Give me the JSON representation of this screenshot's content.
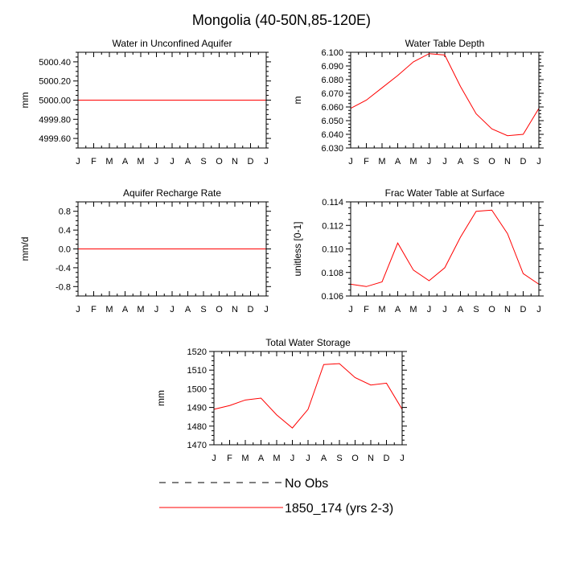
{
  "title": "Mongolia (40-50N,85-120E)",
  "months": [
    "J",
    "F",
    "M",
    "A",
    "M",
    "J",
    "J",
    "A",
    "S",
    "O",
    "N",
    "D",
    "J"
  ],
  "legend": {
    "obs_label": "No Obs",
    "model_label": "1850_174 (yrs 2-3)",
    "model_color": "#ff0000",
    "obs_color": "#000000"
  },
  "chart_data": [
    {
      "type": "line",
      "title": "Water in Unconfined Aquifer",
      "ylabel": "mm",
      "ylim": [
        4999.5,
        5000.5
      ],
      "yticks": [
        4999.6,
        4999.8,
        5000.0,
        5000.2,
        5000.4
      ],
      "ytick_labels": [
        "4999.60",
        "4999.80",
        "5000.00",
        "5000.20",
        "5000.40"
      ],
      "x": [
        0,
        1,
        2,
        3,
        4,
        5,
        6,
        7,
        8,
        9,
        10,
        11,
        12
      ],
      "series": [
        {
          "values": [
            5000,
            5000,
            5000,
            5000,
            5000,
            5000,
            5000,
            5000,
            5000,
            5000,
            5000,
            5000,
            5000
          ]
        }
      ]
    },
    {
      "type": "line",
      "title": "Water Table Depth",
      "ylabel": "m",
      "ylim": [
        6.03,
        6.1
      ],
      "yticks": [
        6.03,
        6.04,
        6.05,
        6.06,
        6.07,
        6.08,
        6.09,
        6.1
      ],
      "ytick_labels": [
        "6.030",
        "6.040",
        "6.050",
        "6.060",
        "6.070",
        "6.080",
        "6.090",
        "6.100"
      ],
      "x": [
        0,
        1,
        2,
        3,
        4,
        5,
        6,
        7,
        8,
        9,
        10,
        11,
        12
      ],
      "series": [
        {
          "values": [
            6.059,
            6.065,
            6.074,
            6.083,
            6.093,
            6.099,
            6.098,
            6.075,
            6.055,
            6.044,
            6.039,
            6.04,
            6.059
          ]
        }
      ]
    },
    {
      "type": "line",
      "title": "Aquifer Recharge Rate",
      "ylabel": "mm/d",
      "ylim": [
        -1.0,
        1.0
      ],
      "yticks": [
        -0.8,
        -0.4,
        0.0,
        0.4,
        0.8
      ],
      "ytick_labels": [
        "-0.8",
        "-0.4",
        "0.0",
        "0.4",
        "0.8"
      ],
      "x": [
        0,
        1,
        2,
        3,
        4,
        5,
        6,
        7,
        8,
        9,
        10,
        11,
        12
      ],
      "series": [
        {
          "values": [
            0,
            0,
            0,
            0,
            0,
            0,
            0,
            0,
            0,
            0,
            0,
            0,
            0
          ]
        }
      ]
    },
    {
      "type": "line",
      "title": "Frac Water Table at Surface",
      "ylabel": "unitless [0-1]",
      "ylim": [
        0.106,
        0.114
      ],
      "yticks": [
        0.106,
        0.108,
        0.11,
        0.112,
        0.114
      ],
      "ytick_labels": [
        "0.106",
        "0.108",
        "0.110",
        "0.112",
        "0.114"
      ],
      "x": [
        0,
        1,
        2,
        3,
        4,
        5,
        6,
        7,
        8,
        9,
        10,
        11,
        12
      ],
      "series": [
        {
          "values": [
            0.107,
            0.1068,
            0.1072,
            0.1105,
            0.1082,
            0.1073,
            0.1084,
            0.111,
            0.1132,
            0.1133,
            0.1113,
            0.1079,
            0.107
          ]
        }
      ]
    },
    {
      "type": "line",
      "title": "Total Water Storage",
      "ylabel": "mm",
      "ylim": [
        1470,
        1520
      ],
      "yticks": [
        1470,
        1480,
        1490,
        1500,
        1510,
        1520
      ],
      "ytick_labels": [
        "1470",
        "1480",
        "1490",
        "1500",
        "1510",
        "1520"
      ],
      "x": [
        0,
        1,
        2,
        3,
        4,
        5,
        6,
        7,
        8,
        9,
        10,
        11,
        12
      ],
      "series": [
        {
          "values": [
            1489,
            1491,
            1494,
            1495,
            1486,
            1479,
            1489,
            1513,
            1513.5,
            1506,
            1502,
            1503,
            1489
          ]
        }
      ]
    }
  ]
}
